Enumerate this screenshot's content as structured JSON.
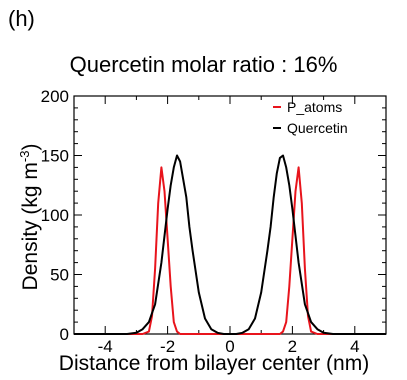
{
  "panel_label": "(h)",
  "chart_data": {
    "type": "line",
    "title": "Quercetin molar ratio : 16%",
    "xlabel": "Distance from bilayer center (nm)",
    "ylabel_main": "Density (kg m",
    "ylabel_sup": "-3",
    "ylabel_end": ")",
    "xlim": [
      -5,
      5
    ],
    "ylim": [
      0,
      200
    ],
    "xticks": [
      -4,
      -2,
      0,
      2,
      4
    ],
    "xtick_labels": [
      "-4",
      "-2",
      "0",
      "2",
      "4"
    ],
    "yticks": [
      0,
      50,
      100,
      150,
      200
    ],
    "ytick_labels": [
      "0",
      "50",
      "100",
      "150",
      "200"
    ],
    "legend_position": "top-right",
    "series": [
      {
        "name": "P_atoms",
        "color": "#e8141c",
        "x": [
          -5,
          -2.8,
          -2.6,
          -2.5,
          -2.4,
          -2.3,
          -2.2,
          -2.1,
          -2.0,
          -1.9,
          -1.8,
          -1.7,
          -1.6,
          1.6,
          1.7,
          1.8,
          1.9,
          2.0,
          2.1,
          2.2,
          2.3,
          2.4,
          2.5,
          2.6,
          2.8,
          5
        ],
        "y": [
          0,
          0,
          2,
          15,
          55,
          110,
          140,
          120,
          80,
          40,
          10,
          2,
          0,
          0,
          2,
          10,
          40,
          80,
          120,
          140,
          110,
          55,
          15,
          2,
          0,
          0
        ]
      },
      {
        "name": "Quercetin",
        "color": "#000000",
        "x": [
          -5,
          -3.3,
          -3.0,
          -2.8,
          -2.6,
          -2.4,
          -2.2,
          -2.0,
          -1.9,
          -1.8,
          -1.7,
          -1.6,
          -1.5,
          -1.4,
          -1.3,
          -1.2,
          -1.0,
          -0.8,
          -0.6,
          -0.4,
          -0.2,
          0,
          0.2,
          0.4,
          0.6,
          0.8,
          1.0,
          1.2,
          1.3,
          1.4,
          1.5,
          1.6,
          1.7,
          1.8,
          1.9,
          2.0,
          2.2,
          2.4,
          2.6,
          2.8,
          3.0,
          3.3,
          5
        ],
        "y": [
          0,
          0,
          1,
          4,
          10,
          25,
          60,
          105,
          125,
          140,
          150,
          145,
          130,
          115,
          90,
          70,
          35,
          13,
          4,
          1,
          0,
          0,
          0,
          1,
          4,
          13,
          35,
          70,
          90,
          115,
          135,
          148,
          150,
          140,
          125,
          105,
          60,
          25,
          10,
          4,
          1,
          0,
          0
        ]
      }
    ]
  }
}
